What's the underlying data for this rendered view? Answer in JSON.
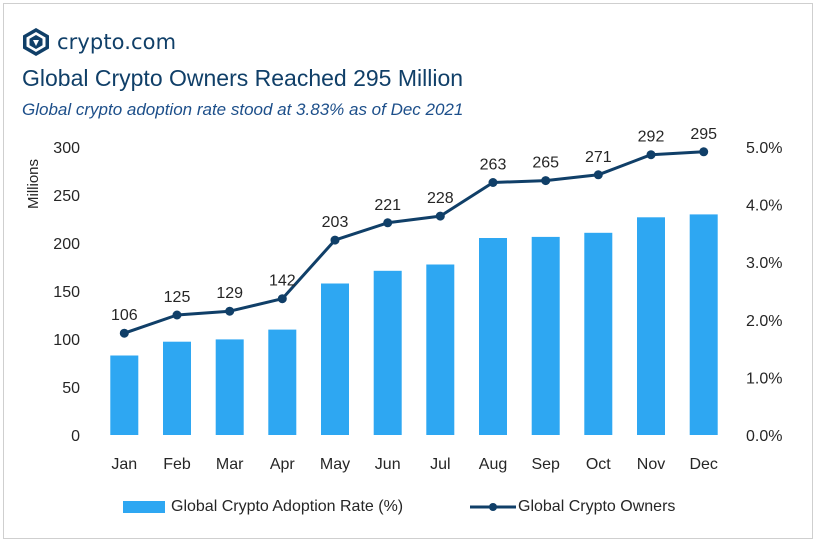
{
  "brand": {
    "name": "crypto.com"
  },
  "colors": {
    "bar": "#2ea7f2",
    "line": "#103f68",
    "title": "#103f68",
    "subtitle": "#1d4f8a"
  },
  "chart_data": {
    "type": "bar",
    "title": "Global Crypto Owners Reached 295 Million",
    "subtitle": "Global crypto adoption rate stood at 3.83% as of Dec 2021",
    "categories": [
      "Jan",
      "Feb",
      "Mar",
      "Apr",
      "May",
      "Jun",
      "Jul",
      "Aug",
      "Sep",
      "Oct",
      "Nov",
      "Dec"
    ],
    "series": [
      {
        "name": "Global Crypto Adoption Rate (%)",
        "type": "bar",
        "axis": "right",
        "values": [
          1.38,
          1.62,
          1.66,
          1.83,
          2.63,
          2.85,
          2.96,
          3.42,
          3.44,
          3.51,
          3.78,
          3.83
        ]
      },
      {
        "name": "Global Crypto Owners",
        "type": "line",
        "axis": "left",
        "values": [
          106,
          125,
          129,
          142,
          203,
          221,
          228,
          263,
          265,
          271,
          292,
          295
        ]
      }
    ],
    "y_left": {
      "label": "Millions",
      "range": [
        0,
        300
      ],
      "ticks": [
        "0",
        "50",
        "100",
        "150",
        "200",
        "250",
        "300"
      ]
    },
    "y_right": {
      "label": "",
      "range": [
        0,
        5.0
      ],
      "ticks": [
        "0.0%",
        "1.0%",
        "2.0%",
        "3.0%",
        "4.0%",
        "5.0%"
      ]
    },
    "data_labels": [
      "106",
      "125",
      "129",
      "142",
      "203",
      "221",
      "228",
      "263",
      "265",
      "271",
      "292",
      "295"
    ],
    "legend": {
      "position": "bottom",
      "items": [
        "Global Crypto Adoption Rate (%)",
        "Global Crypto Owners"
      ]
    },
    "grid": false
  }
}
